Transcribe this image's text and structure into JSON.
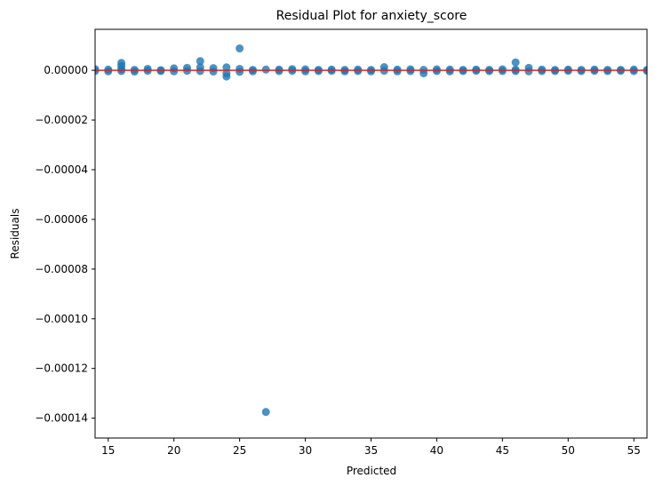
{
  "chart_data": {
    "type": "scatter",
    "title": "Residual Plot for anxiety_score",
    "xlabel": "Predicted",
    "ylabel": "Residuals",
    "xlim": [
      14,
      56
    ],
    "ylim": [
      -0.000148,
      1.65e-05
    ],
    "xticks": [
      15,
      20,
      25,
      30,
      35,
      40,
      45,
      50,
      55
    ],
    "yticks": [
      0,
      -2e-05,
      -4e-05,
      -6e-05,
      -8e-05,
      -0.0001,
      -0.00012,
      -0.00014
    ],
    "ytick_labels": [
      "0.00000",
      "−0.00002",
      "−0.00004",
      "−0.00006",
      "−0.00008",
      "−0.00010",
      "−0.00012",
      "−0.00014"
    ],
    "grid": false,
    "colors": {
      "points": "#1f77b4",
      "reference_line": "#d62728"
    },
    "reference_line_y": 0,
    "points": [
      [
        14,
        5e-07
      ],
      [
        14,
        -3e-07
      ],
      [
        15,
        3e-07
      ],
      [
        15,
        -4e-07
      ],
      [
        16,
        3e-06
      ],
      [
        16,
        1.8e-06
      ],
      [
        16,
        5e-07
      ],
      [
        16,
        -3e-07
      ],
      [
        17,
        2e-07
      ],
      [
        17,
        -5e-07
      ],
      [
        18,
        6e-07
      ],
      [
        18,
        -2e-07
      ],
      [
        19,
        1e-07
      ],
      [
        19,
        -3e-07
      ],
      [
        20,
        8e-07
      ],
      [
        20,
        -4e-07
      ],
      [
        21,
        1e-06
      ],
      [
        21,
        -2e-07
      ],
      [
        22,
        3.7e-06
      ],
      [
        22,
        1.2e-06
      ],
      [
        22,
        -3e-07
      ],
      [
        23,
        9e-07
      ],
      [
        23,
        -5e-07
      ],
      [
        24,
        1.2e-06
      ],
      [
        24,
        -1.2e-06
      ],
      [
        24,
        -2.5e-06
      ],
      [
        25,
        8.8e-06
      ],
      [
        25,
        6e-07
      ],
      [
        25,
        -6e-07
      ],
      [
        26,
        2e-07
      ],
      [
        26,
        -4e-07
      ],
      [
        27,
        -0.0001375
      ],
      [
        27,
        3e-07
      ],
      [
        28,
        3e-07
      ],
      [
        28,
        -3e-07
      ],
      [
        29,
        5e-07
      ],
      [
        29,
        -2e-07
      ],
      [
        30,
        4e-07
      ],
      [
        30,
        -4e-07
      ],
      [
        31,
        2e-07
      ],
      [
        31,
        -3e-07
      ],
      [
        32,
        3e-07
      ],
      [
        32,
        -2e-07
      ],
      [
        33,
        2e-07
      ],
      [
        33,
        -4e-07
      ],
      [
        34,
        3e-07
      ],
      [
        34,
        -3e-07
      ],
      [
        35,
        2e-07
      ],
      [
        35,
        -4e-07
      ],
      [
        36,
        1.3e-06
      ],
      [
        36,
        -2e-07
      ],
      [
        37,
        3e-07
      ],
      [
        37,
        -4e-07
      ],
      [
        38,
        4e-07
      ],
      [
        38,
        -3e-07
      ],
      [
        39,
        2e-07
      ],
      [
        39,
        -1.2e-06
      ],
      [
        40,
        4e-07
      ],
      [
        40,
        -3e-07
      ],
      [
        41,
        3e-07
      ],
      [
        41,
        -4e-07
      ],
      [
        42,
        2e-07
      ],
      [
        42,
        -3e-07
      ],
      [
        43,
        3e-07
      ],
      [
        43,
        -2e-07
      ],
      [
        44,
        2e-07
      ],
      [
        44,
        -3e-07
      ],
      [
        45,
        4e-07
      ],
      [
        45,
        -3e-07
      ],
      [
        46,
        3.2e-06
      ],
      [
        46,
        3e-07
      ],
      [
        46,
        -3e-07
      ],
      [
        47,
        1e-06
      ],
      [
        47,
        -4e-07
      ],
      [
        48,
        3e-07
      ],
      [
        48,
        -3e-07
      ],
      [
        49,
        2e-07
      ],
      [
        49,
        -3e-07
      ],
      [
        50,
        3e-07
      ],
      [
        50,
        -2e-07
      ],
      [
        51,
        2e-07
      ],
      [
        51,
        -3e-07
      ],
      [
        52,
        3e-07
      ],
      [
        52,
        -2e-07
      ],
      [
        53,
        2e-07
      ],
      [
        53,
        -3e-07
      ],
      [
        54,
        2e-07
      ],
      [
        54,
        -2e-07
      ],
      [
        55,
        3e-07
      ],
      [
        55,
        -3e-07
      ],
      [
        56,
        2e-07
      ],
      [
        56,
        -2e-07
      ]
    ]
  }
}
